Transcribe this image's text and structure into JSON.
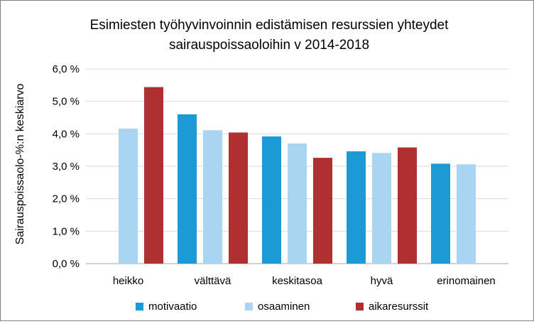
{
  "chart_data": {
    "type": "bar",
    "title": [
      "Esimiesten työhyvinvoinnin edistämisen resurssien yhteydet",
      "sairauspoissaoloihin v 2014-2018"
    ],
    "ylabel": "Sairauspoissaolo-%:n keskiarvo",
    "xlabel": "",
    "ylim": [
      0,
      6
    ],
    "yticks": [
      0,
      1,
      2,
      3,
      4,
      5,
      6
    ],
    "ytick_labels": [
      "0,0 %",
      "1,0 %",
      "2,0 %",
      "3,0 %",
      "4,0 %",
      "5,0 %",
      "6,0 %"
    ],
    "grid": true,
    "legend_position": "bottom",
    "categories": [
      "heikko",
      "välttävä",
      "keskitasoa",
      "hyvä",
      "erinomainen"
    ],
    "series": [
      {
        "name": "motivaatio",
        "color": "#1b9ad6",
        "values": [
          null,
          4.6,
          3.92,
          3.46,
          3.08
        ]
      },
      {
        "name": "osaaminen",
        "color": "#a9d4f2",
        "values": [
          4.16,
          4.11,
          3.7,
          3.41,
          3.06
        ]
      },
      {
        "name": "aikaresurssit",
        "color": "#b03032",
        "values": [
          5.44,
          4.04,
          3.26,
          3.58,
          null
        ]
      }
    ]
  }
}
